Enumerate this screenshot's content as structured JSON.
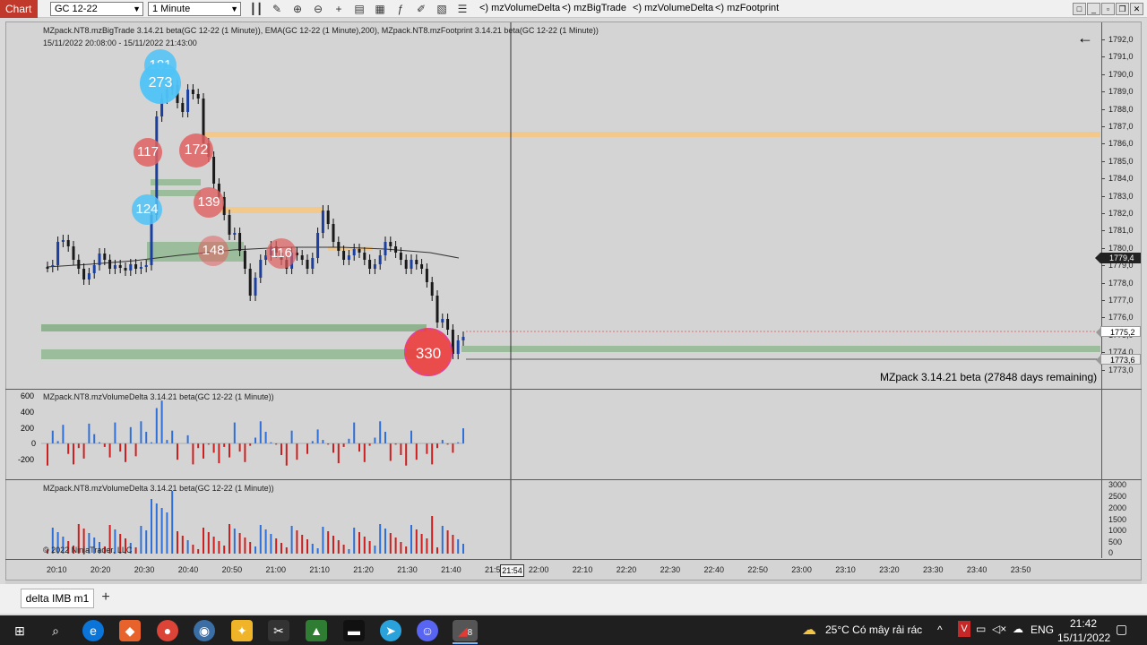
{
  "toolbar": {
    "title": "Chart",
    "instrument": "GC 12-22",
    "interval": "1 Minute",
    "indicators": [
      "<) mzVolumeDelta",
      "<) mzBigTrade",
      "<) mzVolumeDelta",
      "<) mzFootprint"
    ]
  },
  "price_panel": {
    "header_line1": "MZpack.NT8.mzBigTrade 3.14.21 beta(GC 12-22 (1 Minute)), EMA(GC 12-22 (1 Minute),200), MZpack.NT8.mzFootprint 3.14.21 beta(GC 12-22 (1 Minute))",
    "header_line2": "15/11/2022 20:08:00 - 15/11/2022 21:43:00",
    "watermark": "MZpack 3.14.21 beta  (27848 days remaining)",
    "back_arrow": "←",
    "price_ticks": [
      "1792,0",
      "1791,0",
      "1790,0",
      "1789,0",
      "1788,0",
      "1787,0",
      "1786,0",
      "1785,0",
      "1784,0",
      "1783,0",
      "1782,0",
      "1781,0",
      "1780,0",
      "1779,0",
      "1778,0",
      "1777,0",
      "1776,0",
      "1775,0",
      "1774,0",
      "1773,0"
    ],
    "flag_last": "1779,4",
    "flag_mid": "1775,2",
    "flag_low": "1773,6",
    "bubbles": [
      "181",
      "273",
      "117",
      "172",
      "139",
      "124",
      "148",
      "116",
      "330"
    ]
  },
  "delta_panel": {
    "title": "MZpack.NT8.mzVolumeDelta 3.14.21 beta(GC 12-22 (1 Minute))",
    "ticks": [
      "600",
      "400",
      "200",
      "0",
      "-200"
    ]
  },
  "volume_panel": {
    "title": "MZpack.NT8.mzVolumeDelta 3.14.21 beta(GC 12-22 (1 Minute))",
    "ticks": [
      "3000",
      "2500",
      "2000",
      "1500",
      "1000",
      "500",
      "0"
    ],
    "copyright": "© 2022 NinjaTrader, LLC"
  },
  "time_axis": {
    "labels": [
      "20:10",
      "20:20",
      "20:30",
      "20:40",
      "20:50",
      "21:00",
      "21:10",
      "21:20",
      "21:30",
      "21:40",
      "21:50",
      "22:00",
      "22:10",
      "22:20",
      "22:30",
      "22:40",
      "22:50",
      "23:00",
      "23:10",
      "23:20",
      "23:30",
      "23:40",
      "23:50"
    ],
    "crosshair": "21:54"
  },
  "tabs": {
    "active": "delta IMB m1",
    "add": "+"
  },
  "taskbar": {
    "weather": "25°C  Có mây rải rác",
    "lang": "ENG",
    "time": "21:42",
    "date": "15/11/2022",
    "badge": "8"
  },
  "colors": {
    "bull": "#2f6fd8",
    "bear": "#cc1f1f",
    "bubble_blue": "#4fc3f7",
    "bubble_red": "#e06060",
    "level_green": "#7fae7f",
    "level_orange": "#f2c98a"
  }
}
